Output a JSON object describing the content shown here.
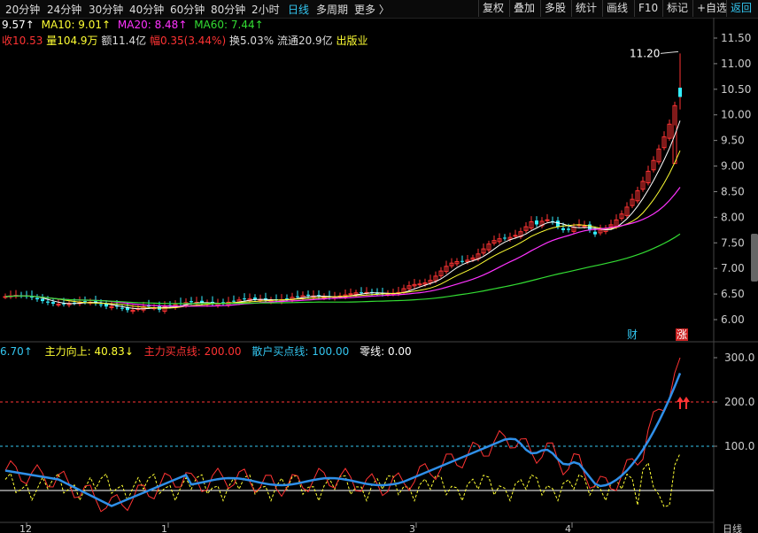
{
  "periods": [
    "20分钟",
    "24分钟",
    "30分钟",
    "40分钟",
    "60分钟",
    "80分钟",
    "2小时",
    "日线",
    "多周期",
    "更多 〉"
  ],
  "active_period": "日线",
  "toolbar": [
    "复权",
    "叠加",
    "多股",
    "统计",
    "画线",
    "F10",
    "标记",
    "+自选",
    "返回"
  ],
  "ma": {
    "ma5": "9.57↑",
    "ma10": "MA10: 9.01↑",
    "ma20": "MA20: 8.48↑",
    "ma60": "MA60: 7.44↑",
    "colors": {
      "ma5": "#ffffff",
      "ma10": "#ffff33",
      "ma20": "#ff33ff",
      "ma60": "#33dd33"
    }
  },
  "quote": {
    "close": "收10.53",
    "volume": "量104.9万",
    "amount": "额11.4亿",
    "change": "幅0.35(3.44%)",
    "turnover": "换5.03%",
    "float": "流通20.9亿",
    "industry": "出版业"
  },
  "price_axis": [
    "11.50",
    "11.00",
    "10.50",
    "10.00",
    "9.50",
    "9.00",
    "8.50",
    "8.00",
    "7.50",
    "7.00",
    "6.50",
    "6.00"
  ],
  "high_label": "11.20",
  "badges": {
    "fin": "财",
    "up": "涨"
  },
  "indicator": {
    "value": "6.70↑",
    "main_up": "主力向上: 40.83↓",
    "main_buy": "主力买点线: 200.00",
    "retail_buy": "散户买点线: 100.00",
    "zero": "零线: 0.00",
    "axis": [
      "300.0",
      "200.0",
      "100.0"
    ],
    "colors": {
      "main_up": "#ffff33",
      "main_buy": "#ff3333",
      "retail_buy": "#33c6f0",
      "zero": "#ffffff"
    }
  },
  "date_labels": [
    "12",
    "1",
    "3",
    "4",
    "日线"
  ],
  "chart_colors": {
    "up": "#ff3333",
    "down": "#33eeff",
    "bg": "#000000",
    "grid": "#333333"
  }
}
